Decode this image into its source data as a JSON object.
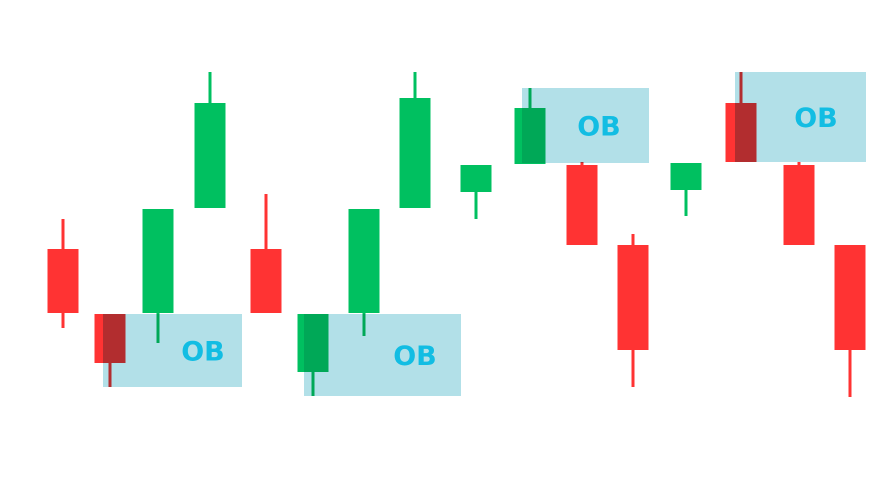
{
  "chart_data": {
    "type": "candlestick",
    "title": "",
    "axes_visible": false,
    "grid": false,
    "colors": {
      "bullish": "#00c060",
      "bearish": "#ff3333",
      "order_block": "#b2e0e8",
      "order_block_label": "#12bde3"
    },
    "candles": [
      {
        "open": 15.1,
        "high": 18.1,
        "low": 7.2,
        "close": 8.7
      },
      {
        "open": 8.6,
        "high": 8.6,
        "low": 1.3,
        "close": 3.7
      },
      {
        "open": 8.7,
        "high": 19.1,
        "low": 5.7,
        "close": 19.1
      },
      {
        "open": 19.2,
        "high": 32.8,
        "low": 19.2,
        "close": 29.7
      },
      {
        "open": 15.1,
        "high": 20.6,
        "low": 8.7,
        "close": 8.7
      },
      {
        "open": 2.8,
        "high": 8.6,
        "low": 0.4,
        "close": 8.6
      },
      {
        "open": 8.7,
        "high": 19.1,
        "low": 6.4,
        "close": 19.1
      },
      {
        "open": 19.2,
        "high": 32.8,
        "low": 19.2,
        "close": 30.2
      },
      {
        "open": 20.8,
        "high": 23.5,
        "low": 18.1,
        "close": 23.5
      },
      {
        "open": 23.6,
        "high": 31.2,
        "low": 23.6,
        "close": 29.2
      },
      {
        "open": 23.5,
        "high": 23.8,
        "low": 15.5,
        "close": 15.5
      },
      {
        "open": 15.5,
        "high": 16.6,
        "low": 1.3,
        "close": 5.0
      },
      {
        "open": 21.0,
        "high": 23.7,
        "low": 18.4,
        "close": 23.7
      },
      {
        "open": 29.7,
        "high": 32.8,
        "low": 23.8,
        "close": 23.8
      },
      {
        "open": 23.5,
        "high": 23.8,
        "low": 15.5,
        "close": 15.5
      },
      {
        "open": 15.5,
        "high": 15.5,
        "low": 0.3,
        "close": 5.0
      }
    ],
    "order_blocks": [
      {
        "label": "OB",
        "candle": 2,
        "top": 8.6,
        "bottom": 1.3
      },
      {
        "label": "OB",
        "candle": 6,
        "top": 8.6,
        "bottom": 0.4
      },
      {
        "label": "OB",
        "candle": 10,
        "top": 31.2,
        "bottom": 23.7
      },
      {
        "label": "OB",
        "candle": 14,
        "top": 32.8,
        "bottom": 23.8
      }
    ]
  }
}
